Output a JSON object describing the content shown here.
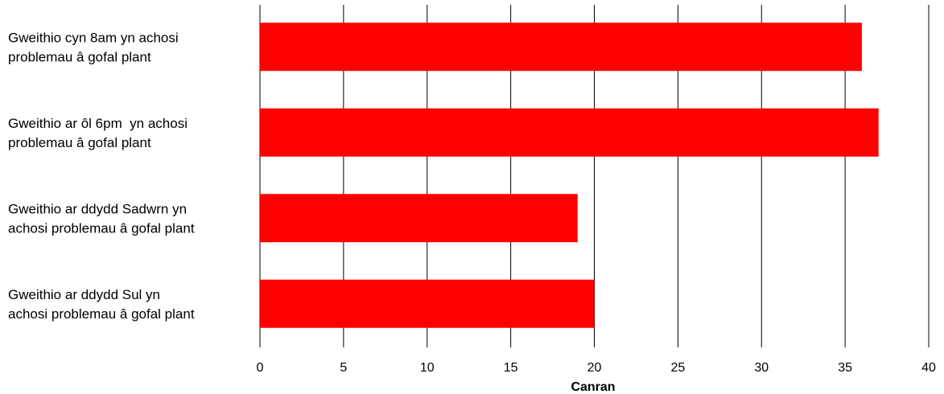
{
  "chart_data": {
    "type": "bar",
    "orientation": "horizontal",
    "categories": [
      [
        "Gweithio cyn 8am yn achosi",
        "problemau â gofal plant"
      ],
      [
        "Gweithio ar ôl 6pm  yn achosi",
        "problemau â gofal plant"
      ],
      [
        "Gweithio ar ddydd Sadwrn yn",
        "achosi problemau â gofal plant"
      ],
      [
        "Gweithio ar ddydd Sul yn",
        "achosi problemau â gofal plant"
      ]
    ],
    "values": [
      36,
      37,
      19,
      20
    ],
    "xlabel": "Canran",
    "ylabel": "",
    "xlim": [
      0,
      40
    ],
    "xticks": [
      "0",
      "5",
      "10",
      "15",
      "20",
      "25",
      "30",
      "35",
      "40"
    ],
    "grid": "vertical",
    "legend": "none",
    "bar_color": "#ff0000"
  }
}
